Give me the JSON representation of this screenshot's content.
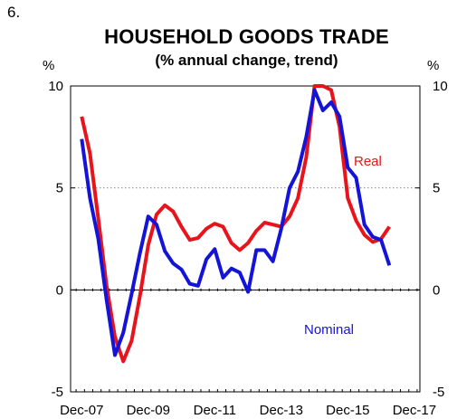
{
  "figure_number": "6.",
  "chart_data": {
    "type": "line",
    "title": "HOUSEHOLD GOODS TRADE",
    "subtitle": "(% annual change, trend)",
    "y_unit_left": "%",
    "y_unit_right": "%",
    "ylim": [
      -5,
      10
    ],
    "y_ticks": [
      "10",
      "5",
      "0",
      "-5"
    ],
    "x_tick_labels": [
      "Dec-07",
      "Dec-09",
      "Dec-11",
      "Dec-13",
      "Dec-15",
      "Dec-17"
    ],
    "x_range": [
      "Dec-07",
      "Dec-17"
    ],
    "gridline_at": 5,
    "series": [
      {
        "name": "Real",
        "color": "#e8141c",
        "points": [
          [
            "Dec-07",
            8.5
          ],
          [
            "Mar-08",
            6.7
          ],
          [
            "Jun-08",
            3.5
          ],
          [
            "Sep-08",
            0.2
          ],
          [
            "Dec-08",
            -2.3
          ],
          [
            "Mar-09",
            -3.5
          ],
          [
            "Jun-09",
            -2.5
          ],
          [
            "Sep-09",
            -0.3
          ],
          [
            "Dec-09",
            2.2
          ],
          [
            "Mar-10",
            3.7
          ],
          [
            "Jun-10",
            4.15
          ],
          [
            "Sep-10",
            3.85
          ],
          [
            "Dec-10",
            3.1
          ],
          [
            "Mar-11",
            2.45
          ],
          [
            "Jun-11",
            2.55
          ],
          [
            "Sep-11",
            3.0
          ],
          [
            "Dec-11",
            3.25
          ],
          [
            "Mar-12",
            3.1
          ],
          [
            "Jun-12",
            2.3
          ],
          [
            "Sep-12",
            1.95
          ],
          [
            "Dec-12",
            2.3
          ],
          [
            "Mar-13",
            2.9
          ],
          [
            "Jun-13",
            3.3
          ],
          [
            "Sep-13",
            3.2
          ],
          [
            "Dec-13",
            3.1
          ],
          [
            "Mar-14",
            3.6
          ],
          [
            "Jun-14",
            4.5
          ],
          [
            "Sep-14",
            6.5
          ],
          [
            "Dec-14",
            10.0
          ],
          [
            "Mar-15",
            10.0
          ],
          [
            "Jun-15",
            9.8
          ],
          [
            "Sep-15",
            8.0
          ],
          [
            "Dec-15",
            4.5
          ],
          [
            "Mar-16",
            3.4
          ],
          [
            "Jun-16",
            2.7
          ],
          [
            "Sep-16",
            2.35
          ],
          [
            "Dec-16",
            2.5
          ],
          [
            "Mar-17",
            3.1
          ]
        ]
      },
      {
        "name": "Nominal",
        "color": "#1414d8",
        "points": [
          [
            "Dec-07",
            7.4
          ],
          [
            "Mar-08",
            4.5
          ],
          [
            "Jun-08",
            2.5
          ],
          [
            "Sep-08",
            -0.5
          ],
          [
            "Dec-08",
            -3.2
          ],
          [
            "Mar-09",
            -2.1
          ],
          [
            "Jun-09",
            -0.2
          ],
          [
            "Sep-09",
            1.8
          ],
          [
            "Dec-09",
            3.6
          ],
          [
            "Mar-10",
            3.2
          ],
          [
            "Jun-10",
            1.9
          ],
          [
            "Sep-10",
            1.3
          ],
          [
            "Dec-10",
            1.0
          ],
          [
            "Mar-11",
            0.3
          ],
          [
            "Jun-11",
            0.2
          ],
          [
            "Sep-11",
            1.5
          ],
          [
            "Dec-11",
            2.0
          ],
          [
            "Mar-12",
            0.6
          ],
          [
            "Jun-12",
            1.05
          ],
          [
            "Sep-12",
            0.85
          ],
          [
            "Dec-12",
            -0.1
          ],
          [
            "Mar-13",
            1.95
          ],
          [
            "Jun-13",
            1.95
          ],
          [
            "Sep-13",
            1.4
          ],
          [
            "Dec-13",
            3.0
          ],
          [
            "Mar-14",
            5.0
          ],
          [
            "Jun-14",
            5.8
          ],
          [
            "Sep-14",
            7.5
          ],
          [
            "Dec-14",
            9.8
          ],
          [
            "Mar-15",
            8.8
          ],
          [
            "Jun-15",
            9.2
          ],
          [
            "Sep-15",
            8.5
          ],
          [
            "Dec-15",
            6.0
          ],
          [
            "Mar-16",
            5.5
          ],
          [
            "Jun-16",
            3.2
          ],
          [
            "Sep-16",
            2.6
          ],
          [
            "Dec-16",
            2.45
          ],
          [
            "Mar-17",
            1.2
          ]
        ]
      }
    ]
  }
}
